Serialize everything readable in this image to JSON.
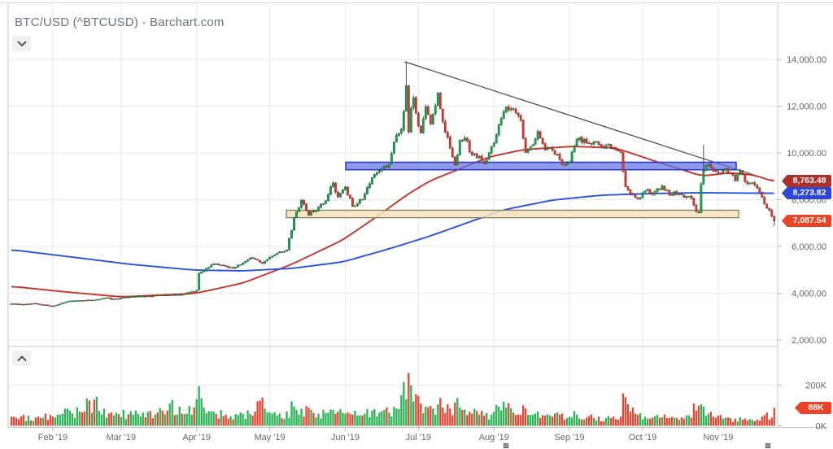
{
  "header": {
    "title": "BTC/USD (^BTCUSD) - Barchart.com"
  },
  "controls": {
    "symbol_toggle_icon": "chevron-down-icon",
    "volume_toggle_icon": "chevron-up-icon"
  },
  "colors": {
    "grid": "#e8e8e8",
    "axis_line": "#c9c9c9",
    "tick": "#b9b9b9",
    "label_text": "#666666",
    "candle_up_fill": "#1fa14f",
    "candle_up_stroke": "#0e6b31",
    "candle_down_fill": "#cf3f34",
    "candle_down_stroke": "#8c241c",
    "wick": "#3a3a3a",
    "volume_up": "#2bb357",
    "volume_down": "#e74633",
    "ma_fast": "#c5342b",
    "ma_slow": "#2a52e2",
    "trendline": "#4d4d4d",
    "zone_blue_fill": "#6374e4",
    "zone_blue_stroke": "#2c3bcd",
    "zone_tan_fill": "#f3e3bd",
    "zone_tan_stroke": "#8a7d5a",
    "badge_ma_fast": "#a93129",
    "badge_ma_slow": "#2b46d9",
    "badge_last": "#eb4326"
  },
  "chart_data": {
    "type": "candlestick+volume",
    "symbol": "BTC/USD (^BTCUSD)",
    "x_axis": {
      "labels": [
        "Feb '19",
        "Mar '19",
        "Apr '19",
        "May '19",
        "Jun '19",
        "Jul '19",
        "Aug '19",
        "Sep '19",
        "Oct '19",
        "Nov '19"
      ],
      "label_days": [
        17,
        45,
        76,
        106,
        137,
        167,
        198,
        229,
        259,
        290
      ],
      "days_total": 313
    },
    "y_axis_price": {
      "tick_labels": [
        "14,000.00",
        "12,000.00",
        "10,000.00",
        "8,000.00",
        "6,000.00",
        "4,000.00",
        "2,000.00"
      ],
      "tick_values": [
        14000,
        12000,
        10000,
        8000,
        6000,
        4000,
        2000
      ],
      "range": [
        1800,
        14450
      ]
    },
    "y_axis_volume": {
      "tick_labels": [
        "200K",
        "0K"
      ],
      "tick_values": [
        200,
        0
      ]
    },
    "price_anchors": [
      [
        0,
        3550
      ],
      [
        5,
        3520
      ],
      [
        10,
        3560
      ],
      [
        17,
        3450
      ],
      [
        24,
        3670
      ],
      [
        32,
        3690
      ],
      [
        40,
        3810
      ],
      [
        41,
        3730
      ],
      [
        50,
        3860
      ],
      [
        60,
        3900
      ],
      [
        70,
        3940
      ],
      [
        76,
        4130
      ],
      [
        77,
        4860
      ],
      [
        83,
        5260
      ],
      [
        88,
        5150
      ],
      [
        91,
        5060
      ],
      [
        98,
        5520
      ],
      [
        103,
        5280
      ],
      [
        108,
        5650
      ],
      [
        113,
        5850
      ],
      [
        116,
        7220
      ],
      [
        119,
        7980
      ],
      [
        122,
        7340
      ],
      [
        126,
        7680
      ],
      [
        129,
        7950
      ],
      [
        132,
        8720
      ],
      [
        134,
        8120
      ],
      [
        135,
        8280
      ],
      [
        137,
        8550
      ],
      [
        140,
        7710
      ],
      [
        144,
        8000
      ],
      [
        148,
        8950
      ],
      [
        152,
        9320
      ],
      [
        155,
        9520
      ],
      [
        158,
        10760
      ],
      [
        160,
        11010
      ],
      [
        161,
        11780
      ],
      [
        162,
        12880
      ],
      [
        163,
        10900
      ],
      [
        164,
        11920
      ],
      [
        165,
        12360
      ],
      [
        167,
        11160
      ],
      [
        168,
        10850
      ],
      [
        170,
        11970
      ],
      [
        172,
        11240
      ],
      [
        175,
        12570
      ],
      [
        177,
        11350
      ],
      [
        180,
        10200
      ],
      [
        182,
        9480
      ],
      [
        184,
        10550
      ],
      [
        186,
        10650
      ],
      [
        189,
        9910
      ],
      [
        192,
        9850
      ],
      [
        194,
        9530
      ],
      [
        198,
        10400
      ],
      [
        201,
        11470
      ],
      [
        203,
        11970
      ],
      [
        206,
        11860
      ],
      [
        209,
        11390
      ],
      [
        211,
        10020
      ],
      [
        214,
        10350
      ],
      [
        216,
        10920
      ],
      [
        219,
        10130
      ],
      [
        222,
        10100
      ],
      [
        225,
        9720
      ],
      [
        226,
        9510
      ],
      [
        229,
        9630
      ],
      [
        232,
        10580
      ],
      [
        236,
        10420
      ],
      [
        241,
        10360
      ],
      [
        246,
        10250
      ],
      [
        250,
        10030
      ],
      [
        252,
        8550
      ],
      [
        254,
        8250
      ],
      [
        257,
        8050
      ],
      [
        260,
        8380
      ],
      [
        263,
        8220
      ],
      [
        267,
        8590
      ],
      [
        270,
        8200
      ],
      [
        272,
        8350
      ],
      [
        276,
        8100
      ],
      [
        279,
        8040
      ],
      [
        281,
        7480
      ],
      [
        282,
        7450
      ],
      [
        283,
        8680
      ],
      [
        284,
        9250
      ],
      [
        286,
        9500
      ],
      [
        288,
        9230
      ],
      [
        290,
        9150
      ],
      [
        293,
        9320
      ],
      [
        295,
        9100
      ],
      [
        297,
        8800
      ],
      [
        299,
        9250
      ],
      [
        301,
        8780
      ],
      [
        303,
        8700
      ],
      [
        306,
        8510
      ],
      [
        308,
        8100
      ],
      [
        310,
        7630
      ],
      [
        312,
        7290
      ],
      [
        313,
        7088
      ]
    ],
    "wick_overrides": {
      "162": {
        "high": 13880
      },
      "284": {
        "high": 10350
      },
      "313": {
        "low": 6870
      }
    },
    "volume_anchors_k": [
      [
        0,
        45
      ],
      [
        10,
        40
      ],
      [
        20,
        55
      ],
      [
        30,
        70
      ],
      [
        32,
        125
      ],
      [
        40,
        60
      ],
      [
        50,
        55
      ],
      [
        60,
        65
      ],
      [
        65,
        110
      ],
      [
        70,
        60
      ],
      [
        75,
        90
      ],
      [
        76,
        130
      ],
      [
        77,
        195
      ],
      [
        79,
        90
      ],
      [
        83,
        70
      ],
      [
        88,
        55
      ],
      [
        95,
        60
      ],
      [
        100,
        70
      ],
      [
        101,
        120
      ],
      [
        106,
        65
      ],
      [
        110,
        60
      ],
      [
        113,
        70
      ],
      [
        116,
        95
      ],
      [
        119,
        85
      ],
      [
        122,
        90
      ],
      [
        126,
        60
      ],
      [
        130,
        65
      ],
      [
        134,
        70
      ],
      [
        137,
        60
      ],
      [
        140,
        55
      ],
      [
        144,
        50
      ],
      [
        148,
        75
      ],
      [
        152,
        70
      ],
      [
        155,
        65
      ],
      [
        158,
        85
      ],
      [
        161,
        215
      ],
      [
        162,
        130
      ],
      [
        163,
        260
      ],
      [
        165,
        120
      ],
      [
        168,
        110
      ],
      [
        170,
        95
      ],
      [
        173,
        85
      ],
      [
        175,
        105
      ],
      [
        177,
        90
      ],
      [
        180,
        85
      ],
      [
        182,
        115
      ],
      [
        184,
        90
      ],
      [
        186,
        80
      ],
      [
        189,
        60
      ],
      [
        192,
        55
      ],
      [
        194,
        50
      ],
      [
        198,
        70
      ],
      [
        201,
        75
      ],
      [
        203,
        90
      ],
      [
        206,
        65
      ],
      [
        211,
        85
      ],
      [
        214,
        55
      ],
      [
        216,
        70
      ],
      [
        219,
        50
      ],
      [
        222,
        45
      ],
      [
        225,
        55
      ],
      [
        226,
        60
      ],
      [
        229,
        45
      ],
      [
        232,
        55
      ],
      [
        236,
        40
      ],
      [
        241,
        45
      ],
      [
        246,
        38
      ],
      [
        250,
        45
      ],
      [
        251,
        160
      ],
      [
        252,
        140
      ],
      [
        254,
        70
      ],
      [
        257,
        55
      ],
      [
        260,
        45
      ],
      [
        263,
        40
      ],
      [
        267,
        42
      ],
      [
        270,
        38
      ],
      [
        272,
        40
      ],
      [
        276,
        35
      ],
      [
        279,
        40
      ],
      [
        280,
        110
      ],
      [
        281,
        75
      ],
      [
        283,
        105
      ],
      [
        284,
        95
      ],
      [
        286,
        60
      ],
      [
        288,
        45
      ],
      [
        290,
        50
      ],
      [
        293,
        40
      ],
      [
        295,
        38
      ],
      [
        297,
        35
      ],
      [
        299,
        42
      ],
      [
        301,
        36
      ],
      [
        303,
        33
      ],
      [
        306,
        30
      ],
      [
        308,
        45
      ],
      [
        310,
        65
      ],
      [
        312,
        40
      ],
      [
        313,
        88
      ]
    ],
    "ma_fast": {
      "name": "moving-average-fast",
      "label": "8,763.48",
      "points": [
        [
          0,
          4296
        ],
        [
          20,
          4080
        ],
        [
          45,
          3845
        ],
        [
          75,
          3985
        ],
        [
          95,
          4435
        ],
        [
          115,
          5235
        ],
        [
          136,
          6280
        ],
        [
          152,
          7425
        ],
        [
          162,
          8190
        ],
        [
          172,
          8820
        ],
        [
          182,
          9235
        ],
        [
          196,
          9825
        ],
        [
          210,
          10140
        ],
        [
          230,
          10280
        ],
        [
          248,
          10210
        ],
        [
          266,
          9580
        ],
        [
          277,
          9230
        ],
        [
          283,
          9010
        ],
        [
          295,
          9150
        ],
        [
          305,
          9050
        ],
        [
          313,
          8763
        ]
      ]
    },
    "ma_slow": {
      "name": "moving-average-slow",
      "label": "8,273.82",
      "points": [
        [
          0,
          5861
        ],
        [
          22,
          5583
        ],
        [
          49,
          5235
        ],
        [
          75,
          4991
        ],
        [
          95,
          4957
        ],
        [
          115,
          5061
        ],
        [
          136,
          5339
        ],
        [
          156,
          5930
        ],
        [
          172,
          6452
        ],
        [
          186,
          6974
        ],
        [
          202,
          7565
        ],
        [
          222,
          7983
        ],
        [
          242,
          8191
        ],
        [
          262,
          8261
        ],
        [
          282,
          8296
        ],
        [
          313,
          8274
        ]
      ]
    },
    "last_price_label": "7,087.54",
    "volume_badge_label": "88K",
    "trendline": {
      "from": [
        161.3,
        13900
      ],
      "to": [
        312.5,
        8790
      ]
    },
    "zones": [
      {
        "name": "resistance-zone",
        "from_day": 137.2,
        "to_day": 297.4,
        "price_top": 9600,
        "price_bottom": 9280
      },
      {
        "name": "support-zone",
        "from_day": 112.8,
        "to_day": 298.4,
        "price_top": 7550,
        "price_bottom": 7230
      }
    ]
  }
}
